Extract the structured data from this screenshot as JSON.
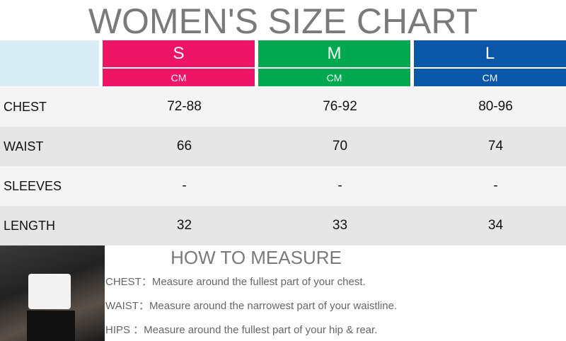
{
  "header": {
    "title": "WOMEN'S SIZE CHART"
  },
  "table": {
    "sizes": [
      "S",
      "M",
      "L"
    ],
    "units": [
      "CM",
      "CM",
      "CM"
    ],
    "rows": [
      [
        "CHEST",
        "72-88",
        "76-92",
        "80-96"
      ],
      [
        "WAIST",
        "66",
        "70",
        "74"
      ],
      [
        "SLEEVES",
        "-",
        "-",
        "-"
      ],
      [
        "LENGTH",
        "32",
        "33",
        "34"
      ]
    ]
  },
  "measure": {
    "title": "HOW TO MEASURE",
    "lines": [
      "CHEST：Measure around the fullest part of your chest.",
      "WAIST：Measure around the narrowest part of your waistline.",
      "HIPS ：Measure around the fullest part of your hip & rear."
    ]
  }
}
